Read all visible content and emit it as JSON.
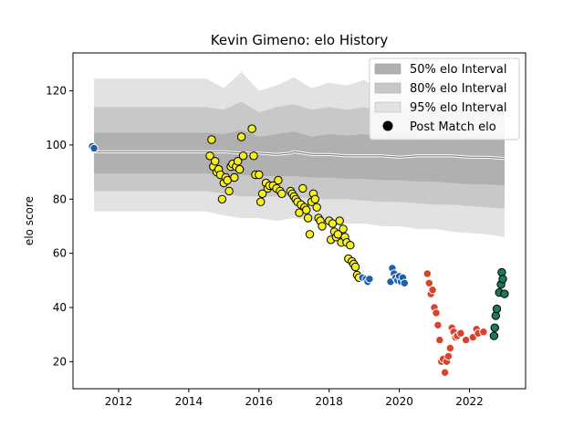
{
  "chart_data": {
    "type": "scatter",
    "title": "Kevin Gimeno: elo History",
    "xlabel": "",
    "ylabel": "elo score",
    "xlim": [
      2010.7,
      2023.6
    ],
    "ylim": [
      10,
      134
    ],
    "xticks": [
      2012,
      2014,
      2016,
      2018,
      2020,
      2022
    ],
    "yticks": [
      20,
      40,
      60,
      80,
      100,
      120
    ],
    "grid": false,
    "legend_position": "top-right",
    "legend": [
      {
        "label": "50% elo Interval",
        "color": "#b0b0b0"
      },
      {
        "label": "80% elo Interval",
        "color": "#c8c8c8"
      },
      {
        "label": "95% elo Interval",
        "color": "#e2e2e2"
      },
      {
        "label": "Post Match elo",
        "color": "#000000"
      }
    ],
    "band_x": [
      2011.3,
      2014.5,
      2015.0,
      2015.5,
      2016.0,
      2016.5,
      2017.0,
      2017.5,
      2018.0,
      2018.5,
      2019.0,
      2019.5,
      2020.0,
      2020.5,
      2021.0,
      2021.5,
      2022.0,
      2022.5,
      2023.0
    ],
    "bands": {
      "p95_upper": [
        124.5,
        124.5,
        121,
        127,
        120,
        122,
        125,
        121,
        123,
        122,
        124,
        120,
        125,
        121,
        122,
        124,
        121,
        124,
        123
      ],
      "p95_lower": [
        75.5,
        75.5,
        74,
        73,
        73,
        72,
        73,
        72,
        72,
        71,
        71,
        70,
        70,
        69,
        69,
        68,
        67.5,
        67,
        66
      ],
      "p80_upper": [
        114,
        114,
        113,
        116,
        112,
        114,
        115,
        113,
        114,
        113,
        114,
        112,
        115,
        113,
        113,
        114,
        112,
        113,
        112
      ],
      "p80_lower": [
        83,
        83,
        82,
        81,
        81,
        81,
        81,
        80,
        80,
        80,
        79.5,
        79,
        79,
        78.5,
        78,
        78,
        77.5,
        77,
        76.5
      ],
      "p50_upper": [
        104.5,
        104.5,
        104,
        105.5,
        103,
        104,
        105,
        103,
        104,
        103.5,
        104,
        103,
        104.5,
        103.5,
        103.5,
        104,
        103,
        103.5,
        103
      ],
      "p50_lower": [
        89.5,
        89.5,
        89,
        89,
        88.5,
        88.5,
        88.5,
        88,
        88,
        87.5,
        87.5,
        87,
        87,
        86.5,
        86.5,
        86,
        85.5,
        85.5,
        85
      ]
    },
    "median_x": [
      2011.3,
      2014.5,
      2015.0,
      2015.5,
      2016.0,
      2016.5,
      2016.9,
      2017.0,
      2017.5,
      2018.0,
      2018.5,
      2019.0,
      2019.5,
      2020.0,
      2020.5,
      2021.0,
      2021.5,
      2022.0,
      2022.5,
      2023.0
    ],
    "median_y": [
      97.5,
      97.5,
      97.5,
      97,
      97,
      96.5,
      97,
      97.5,
      96.5,
      96.5,
      96,
      96,
      96,
      95.5,
      96,
      96,
      96,
      95.5,
      95.5,
      95
    ],
    "series": [
      {
        "name": "Post Match elo",
        "color": "#1f5fa8",
        "edge": "#ffffff",
        "points": [
          [
            2011.25,
            99.5
          ],
          [
            2011.3,
            98.8
          ]
        ]
      },
      {
        "color": "#f5f01e",
        "edge": "#000000",
        "points": [
          [
            2014.65,
            102
          ],
          [
            2014.6,
            96
          ],
          [
            2014.7,
            92
          ],
          [
            2014.75,
            94
          ],
          [
            2014.8,
            90
          ],
          [
            2014.85,
            91
          ],
          [
            2014.9,
            89
          ],
          [
            2014.95,
            80
          ],
          [
            2015.0,
            86
          ],
          [
            2015.05,
            88
          ],
          [
            2015.1,
            87
          ],
          [
            2015.15,
            83
          ],
          [
            2015.2,
            92
          ],
          [
            2015.25,
            93
          ],
          [
            2015.3,
            88
          ],
          [
            2015.35,
            92
          ],
          [
            2015.4,
            94
          ],
          [
            2015.45,
            91
          ],
          [
            2015.5,
            103
          ],
          [
            2015.55,
            96
          ],
          [
            2015.8,
            106
          ],
          [
            2015.85,
            96
          ],
          [
            2015.9,
            89
          ],
          [
            2016.0,
            89
          ],
          [
            2016.05,
            79
          ],
          [
            2016.1,
            82
          ],
          [
            2016.2,
            86
          ],
          [
            2016.25,
            84
          ],
          [
            2016.3,
            85
          ],
          [
            2016.4,
            85
          ],
          [
            2016.5,
            84
          ],
          [
            2016.55,
            87
          ],
          [
            2016.6,
            83
          ],
          [
            2016.65,
            82
          ],
          [
            2016.9,
            83
          ],
          [
            2016.95,
            82
          ],
          [
            2017.0,
            81
          ],
          [
            2017.05,
            80
          ],
          [
            2017.1,
            79
          ],
          [
            2017.15,
            75
          ],
          [
            2017.2,
            78
          ],
          [
            2017.25,
            84
          ],
          [
            2017.3,
            77
          ],
          [
            2017.35,
            76
          ],
          [
            2017.4,
            73
          ],
          [
            2017.45,
            67
          ],
          [
            2017.5,
            79
          ],
          [
            2017.55,
            82
          ],
          [
            2017.6,
            80
          ],
          [
            2017.65,
            77
          ],
          [
            2017.7,
            73
          ],
          [
            2017.75,
            72
          ],
          [
            2017.8,
            70
          ],
          [
            2018.0,
            72
          ],
          [
            2018.05,
            65
          ],
          [
            2018.1,
            71
          ],
          [
            2018.15,
            68
          ],
          [
            2018.2,
            66
          ],
          [
            2018.25,
            67
          ],
          [
            2018.3,
            72
          ],
          [
            2018.35,
            64
          ],
          [
            2018.4,
            69
          ],
          [
            2018.45,
            66
          ],
          [
            2018.5,
            64
          ],
          [
            2018.55,
            58
          ],
          [
            2018.6,
            63
          ],
          [
            2018.65,
            57
          ],
          [
            2018.7,
            56
          ],
          [
            2018.75,
            55
          ],
          [
            2018.8,
            52
          ],
          [
            2018.85,
            51
          ]
        ]
      },
      {
        "color": "#1f5fa8",
        "edge": "#ffffff",
        "points": [
          [
            2018.95,
            51
          ],
          [
            2019.05,
            50.5
          ],
          [
            2019.1,
            49.5
          ],
          [
            2019.15,
            50.5
          ],
          [
            2019.75,
            49.5
          ],
          [
            2019.8,
            54.5
          ],
          [
            2019.85,
            52.5
          ],
          [
            2019.9,
            51
          ],
          [
            2019.95,
            50
          ],
          [
            2020.0,
            51.5
          ],
          [
            2020.05,
            49.5
          ],
          [
            2020.1,
            51
          ],
          [
            2020.15,
            49
          ]
        ]
      },
      {
        "color": "#d9422b",
        "edge": "#ffffff",
        "points": [
          [
            2020.8,
            52.5
          ],
          [
            2020.85,
            49
          ],
          [
            2020.9,
            45
          ],
          [
            2020.95,
            46.5
          ],
          [
            2021.0,
            40
          ],
          [
            2021.05,
            38
          ],
          [
            2021.1,
            33.5
          ],
          [
            2021.15,
            28
          ],
          [
            2021.2,
            20
          ],
          [
            2021.25,
            21
          ],
          [
            2021.3,
            16
          ],
          [
            2021.35,
            20
          ],
          [
            2021.4,
            22
          ],
          [
            2021.45,
            25
          ],
          [
            2021.5,
            32.5
          ],
          [
            2021.55,
            31
          ],
          [
            2021.6,
            29
          ],
          [
            2021.65,
            29.5
          ],
          [
            2021.75,
            30.5
          ],
          [
            2021.9,
            28
          ],
          [
            2022.1,
            29
          ],
          [
            2022.2,
            32
          ],
          [
            2022.25,
            30.5
          ],
          [
            2022.4,
            31
          ]
        ]
      },
      {
        "color": "#1c7a5c",
        "edge": "#000000",
        "points": [
          [
            2022.7,
            29.5
          ],
          [
            2022.72,
            32.5
          ],
          [
            2022.75,
            37
          ],
          [
            2022.78,
            39.5
          ],
          [
            2022.85,
            45.5
          ],
          [
            2022.9,
            48.5
          ],
          [
            2022.92,
            53
          ],
          [
            2022.95,
            50.5
          ],
          [
            2023.0,
            45
          ]
        ]
      }
    ]
  }
}
